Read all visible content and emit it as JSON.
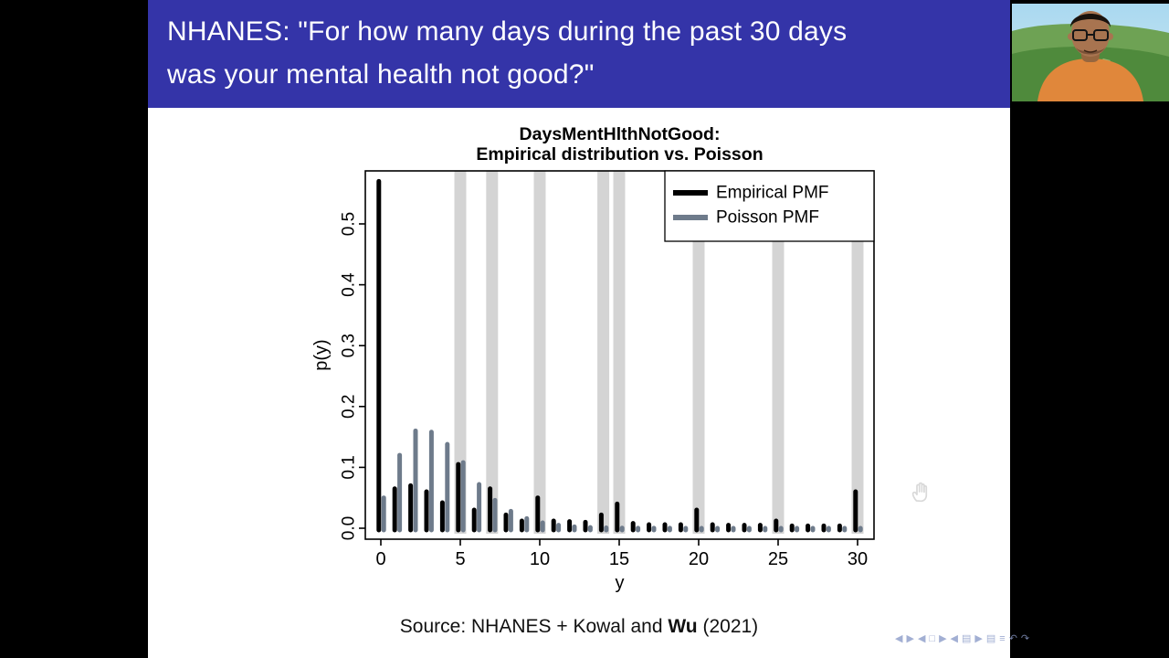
{
  "slide": {
    "title_lines": [
      "NHANES: \"For how many days during the past 30 days",
      "was your mental health not good?\""
    ],
    "source": {
      "prefix": "Source:  NHANES + Kowal and ",
      "bold": "Wu",
      "suffix": " (2021)"
    }
  },
  "chart_data": {
    "type": "bar",
    "title_lines": [
      "DaysMentHlthNotGood:",
      "Empirical distribution vs. Poisson"
    ],
    "xlabel": "y",
    "ylabel": "p(y)",
    "xticks": [
      0,
      5,
      10,
      15,
      20,
      25,
      30
    ],
    "yticks": [
      "0.0",
      "0.1",
      "0.2",
      "0.3",
      "0.4",
      "0.5"
    ],
    "ylim": [
      0,
      0.587
    ],
    "x_range": [
      0,
      30
    ],
    "highlight_x": [
      5,
      7,
      10,
      14,
      15,
      20,
      25,
      30
    ],
    "highlight_color": "#d4d4d4",
    "legend_position": "top-right",
    "series": [
      {
        "name": "Empirical PMF",
        "color": "#000000",
        "values": [
          0.57,
          0.065,
          0.07,
          0.06,
          0.042,
          0.105,
          0.03,
          0.065,
          0.022,
          0.012,
          0.05,
          0.012,
          0.011,
          0.01,
          0.022,
          0.04,
          0.008,
          0.006,
          0.006,
          0.006,
          0.03,
          0.006,
          0.005,
          0.005,
          0.005,
          0.012,
          0.004,
          0.004,
          0.004,
          0.004,
          0.06
        ]
      },
      {
        "name": "Poisson PMF",
        "color": "#6e7b8b",
        "values": [
          0.05,
          0.12,
          0.16,
          0.158,
          0.138,
          0.108,
          0.072,
          0.046,
          0.028,
          0.016,
          0.009,
          0.005,
          0.0025,
          0.0013,
          0.0007,
          0.0003,
          0.0002,
          0.0001,
          0.0001,
          0,
          0,
          0,
          0,
          0,
          0,
          0,
          0,
          0,
          0,
          0,
          0
        ]
      }
    ]
  },
  "nav": {
    "icons": [
      {
        "name": "nav-slide-prev-icon",
        "glyph": "◀"
      },
      {
        "name": "nav-slide-next-icon",
        "glyph": "▶"
      },
      {
        "name": "nav-frame-prev-icon",
        "glyph": "◀"
      },
      {
        "name": "nav-frame-icon",
        "glyph": "□"
      },
      {
        "name": "nav-frame-next-icon",
        "glyph": "▶"
      },
      {
        "name": "nav-subsection-prev-icon",
        "glyph": "◀"
      },
      {
        "name": "nav-subsection-icon",
        "glyph": "▤"
      },
      {
        "name": "nav-subsection-next-icon",
        "glyph": "▶"
      },
      {
        "name": "nav-section-icon",
        "glyph": "▤"
      },
      {
        "name": "nav-presentation-icon",
        "glyph": "≡"
      },
      {
        "name": "nav-back-icon",
        "glyph": "↶"
      },
      {
        "name": "nav-forward-icon",
        "glyph": "↷"
      }
    ]
  }
}
